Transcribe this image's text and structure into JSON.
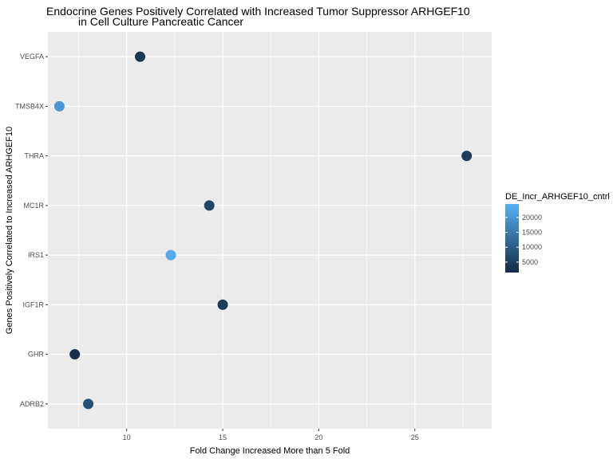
{
  "chart_data": {
    "type": "scatter",
    "title_lines": [
      "Endocrine Genes Positively Correlated with Increased Tumor Suppressor ARHGEF10",
      "in Cell Culture Pancreatic Cancer"
    ],
    "xlabel": "Fold Change Increased More than 5 Fold",
    "ylabel": "Genes Positively Correlated to Increased ARHGEF10",
    "xlim": [
      5.9,
      29.0
    ],
    "x_ticks": [
      10,
      15,
      20,
      25
    ],
    "x_tick_labels": [
      "10",
      "15",
      "20",
      "25"
    ],
    "categories": [
      "ADRB2",
      "GHR",
      "IGF1R",
      "IRS1",
      "MC1R",
      "THRA",
      "TMSB4X",
      "VEGFA"
    ],
    "points": [
      {
        "gene": "VEGFA",
        "x": 10.7,
        "color_value": 3500
      },
      {
        "gene": "TMSB4X",
        "x": 6.5,
        "color_value": 20000
      },
      {
        "gene": "THRA",
        "x": 27.7,
        "color_value": 4500
      },
      {
        "gene": "MC1R",
        "x": 14.3,
        "color_value": 6000
      },
      {
        "gene": "IRS1",
        "x": 12.3,
        "color_value": 23500
      },
      {
        "gene": "IGF1R",
        "x": 15.0,
        "color_value": 4500
      },
      {
        "gene": "GHR",
        "x": 7.3,
        "color_value": 2500
      },
      {
        "gene": "ADRB2",
        "x": 8.0,
        "color_value": 8000
      }
    ],
    "legend": {
      "title": "DE_Incr_ARHGEF10_cntrl",
      "min": 1500,
      "max": 24500,
      "breaks": [
        5000,
        10000,
        15000,
        20000
      ],
      "break_labels": [
        "5000",
        "10000",
        "15000",
        "20000"
      ],
      "low_color": "#132B43",
      "high_color": "#56B1F7",
      "placement": "right"
    },
    "grid": true,
    "panel_color": "#EBEBEB",
    "grid_color": "#FFFFFF"
  }
}
